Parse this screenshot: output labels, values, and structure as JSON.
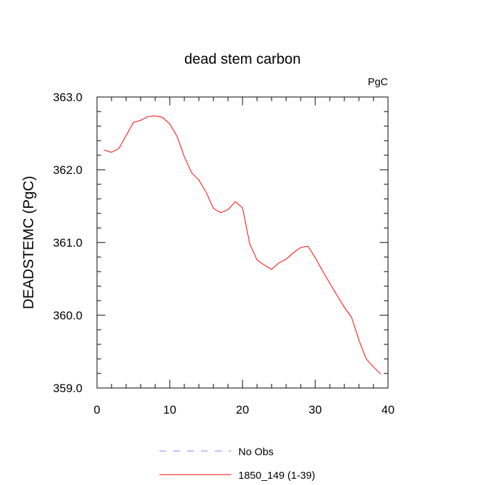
{
  "chart_data": {
    "type": "line",
    "title": "dead stem carbon",
    "units": "PgC",
    "ylabel": "DEADSTEMC  (PgC)",
    "xlabel": "",
    "xlim": [
      0,
      40
    ],
    "ylim": [
      359.0,
      363.0
    ],
    "xticks": [
      0,
      10,
      20,
      30,
      40
    ],
    "xtick_labels": [
      "0",
      "10",
      "20",
      "30",
      "40"
    ],
    "yticks": [
      359.0,
      360.0,
      361.0,
      362.0,
      363.0
    ],
    "ytick_labels": [
      "359.0",
      "360.0",
      "361.0",
      "362.0",
      "363.0"
    ],
    "grid": false,
    "legend_position": "bottom",
    "series": [
      {
        "name": "No Obs",
        "color": "#8080ff",
        "dash": "dashed",
        "x": [],
        "y": []
      },
      {
        "name": "1850_149 (1-39)",
        "color": "#ff0000",
        "dash": "solid",
        "x": [
          1,
          2,
          3,
          4,
          5,
          6,
          7,
          8,
          9,
          10,
          11,
          12,
          13,
          14,
          15,
          16,
          17,
          18,
          19,
          20,
          21,
          22,
          23,
          24,
          25,
          26,
          27,
          28,
          29,
          30,
          31,
          32,
          33,
          34,
          35,
          36,
          37,
          38,
          39
        ],
        "y": [
          362.27,
          362.24,
          362.29,
          362.47,
          362.65,
          362.68,
          362.73,
          362.74,
          362.72,
          362.63,
          362.46,
          362.18,
          361.96,
          361.86,
          361.69,
          361.47,
          361.41,
          361.45,
          361.56,
          361.48,
          360.98,
          360.76,
          360.69,
          360.63,
          360.72,
          360.77,
          360.86,
          360.93,
          360.95,
          360.79,
          360.61,
          360.44,
          360.27,
          360.11,
          359.97,
          359.66,
          359.4,
          359.29,
          359.19
        ]
      }
    ]
  }
}
